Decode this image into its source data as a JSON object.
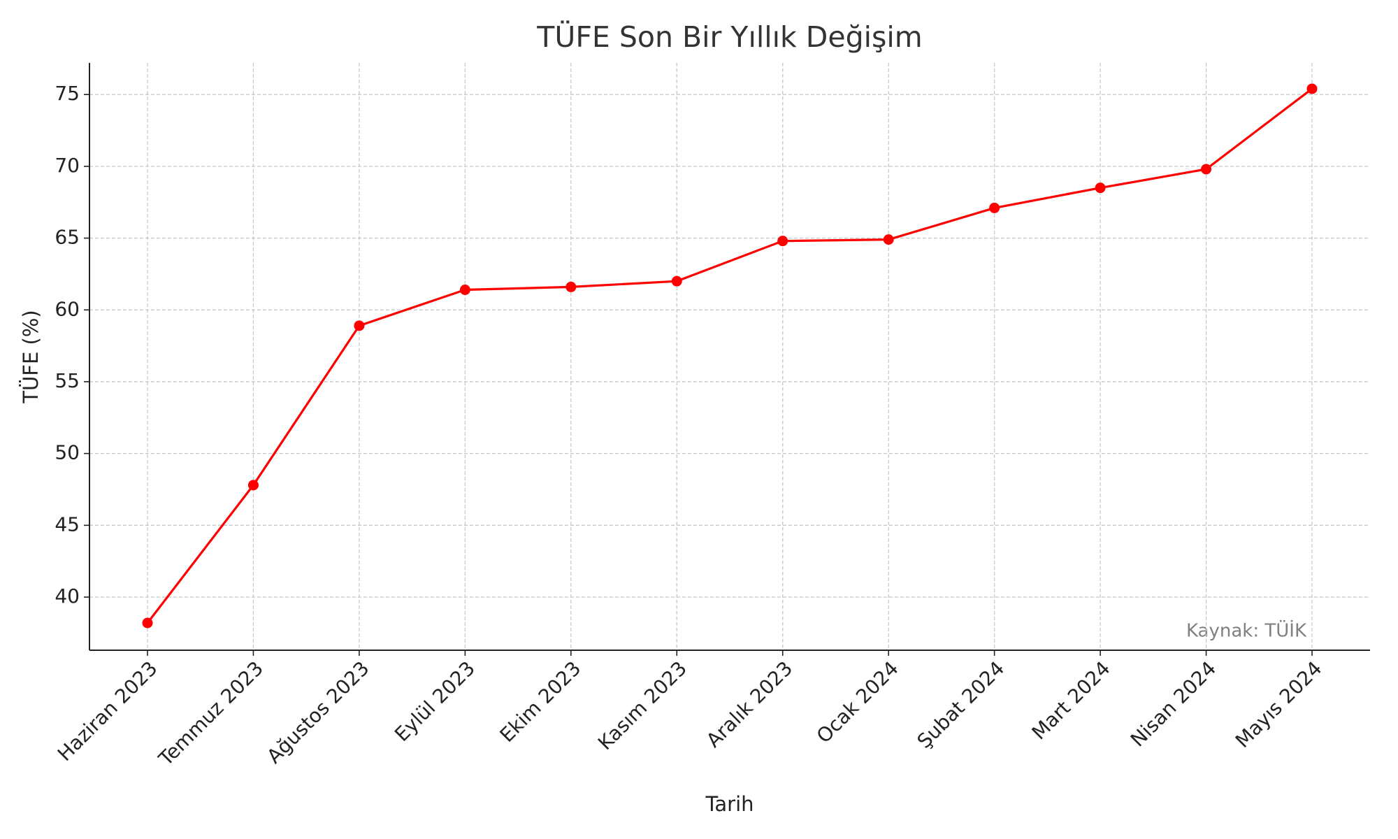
{
  "chart_data": {
    "type": "line",
    "title": "TÜFE Son Bir Yıllık Değişim",
    "x_label": "Tarih",
    "y_label": "TÜFE (%)",
    "categories": [
      "Haziran 2023",
      "Temmuz 2023",
      "Ağustos 2023",
      "Eylül 2023",
      "Ekim 2023",
      "Kasım 2023",
      "Aralık 2023",
      "Ocak 2024",
      "Şubat 2024",
      "Mart 2024",
      "Nisan 2024",
      "Mayıs 2024"
    ],
    "series": [
      {
        "name": "TÜFE",
        "color": "#ff0000",
        "values": [
          38.2,
          47.8,
          58.9,
          61.4,
          61.6,
          62.0,
          64.8,
          64.9,
          67.1,
          68.5,
          69.8,
          75.4
        ]
      }
    ],
    "ylim": [
      36.3,
      77.2
    ],
    "yticks": [
      40,
      45,
      50,
      55,
      60,
      65,
      70,
      75
    ],
    "grid": true,
    "annotation": "Kaynak: TÜİK"
  }
}
